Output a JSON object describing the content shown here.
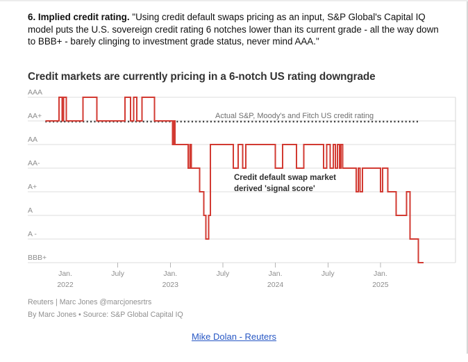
{
  "page": {
    "intro_bold": "6. Implied credit rating.",
    "intro_text": " \"Using credit default swaps pricing as an input, S&P Global's Capital IQ model puts the U.S. sovereign credit rating 6 notches lower than its current grade - all the way down to BBB+ - barely clinging to investment grade status, never mind AAA.\"",
    "link_label": "Mike Dolan - Reuters"
  },
  "chart_data": {
    "type": "line",
    "subtype": "step",
    "title": "Credit markets are currently pricing in a 6-notch US rating downgrade",
    "grid": "horizontal-on",
    "legend_position": "inline-annotations",
    "y_axis": {
      "labels_top_to_bottom": [
        "AAA",
        "AA+",
        "AA",
        "AA-",
        "A+",
        "A",
        "A -",
        "BBB+"
      ],
      "levels": [
        "AAA",
        "AA+",
        "AA",
        "AA-",
        "A+",
        "A",
        "A-",
        "BBB+"
      ]
    },
    "x_axis": {
      "range": [
        2021.81,
        2025.68
      ],
      "ticks": [
        {
          "t": 2022.0,
          "label": "Jan.",
          "sublabel": "2022"
        },
        {
          "t": 2022.5,
          "label": "July"
        },
        {
          "t": 2023.0,
          "label": "Jan.",
          "sublabel": "2023"
        },
        {
          "t": 2023.5,
          "label": "July"
        },
        {
          "t": 2024.0,
          "label": "Jan.",
          "sublabel": "2024"
        },
        {
          "t": 2024.5,
          "label": "July"
        },
        {
          "t": 2025.0,
          "label": "Jan.",
          "sublabel": "2025"
        }
      ]
    },
    "series": [
      {
        "name": "Actual S&P, Moody's and Fitch US credit rating",
        "style": "dotted",
        "color": "#3b3b3b",
        "points": [
          [
            2021.81,
            "AA+"
          ],
          [
            2025.36,
            "AA+"
          ]
        ]
      },
      {
        "name": "Credit default swap market derived 'signal score'",
        "style": "step",
        "color": "#d23a32",
        "points": [
          [
            2021.81,
            "AA+"
          ],
          [
            2021.94,
            "AAA"
          ],
          [
            2021.97,
            "AA+"
          ],
          [
            2021.985,
            "AAA"
          ],
          [
            2022.01,
            "AA+"
          ],
          [
            2022.17,
            "AAA"
          ],
          [
            2022.3,
            "AA+"
          ],
          [
            2022.57,
            "AAA"
          ],
          [
            2022.62,
            "AA+"
          ],
          [
            2022.65,
            "AAA"
          ],
          [
            2022.68,
            "AA+"
          ],
          [
            2022.73,
            "AAA"
          ],
          [
            2022.85,
            "AA+"
          ],
          [
            2023.02,
            "AA"
          ],
          [
            2023.03,
            "AA+"
          ],
          [
            2023.045,
            "AA"
          ],
          [
            2023.17,
            "AA-"
          ],
          [
            2023.185,
            "AA"
          ],
          [
            2023.2,
            "AA-"
          ],
          [
            2023.28,
            "A+"
          ],
          [
            2023.32,
            "A"
          ],
          [
            2023.34,
            "A-"
          ],
          [
            2023.365,
            "A"
          ],
          [
            2023.38,
            "AA"
          ],
          [
            2023.6,
            "AA-"
          ],
          [
            2023.645,
            "AA"
          ],
          [
            2023.69,
            "AA-"
          ],
          [
            2023.72,
            "AA"
          ],
          [
            2024.0,
            "AA-"
          ],
          [
            2024.07,
            "AA"
          ],
          [
            2024.2,
            "AA-"
          ],
          [
            2024.27,
            "AA"
          ],
          [
            2024.46,
            "AA-"
          ],
          [
            2024.49,
            "AA"
          ],
          [
            2024.52,
            "AA-"
          ],
          [
            2024.55,
            "AA"
          ],
          [
            2024.57,
            "AA-"
          ],
          [
            2024.59,
            "AA"
          ],
          [
            2024.61,
            "AA-"
          ],
          [
            2024.625,
            "AA"
          ],
          [
            2024.64,
            "AA-"
          ],
          [
            2024.77,
            "A+"
          ],
          [
            2024.79,
            "AA-"
          ],
          [
            2024.805,
            "A+"
          ],
          [
            2024.83,
            "AA-"
          ],
          [
            2025.0,
            "A+"
          ],
          [
            2025.02,
            "AA-"
          ],
          [
            2025.07,
            "A+"
          ],
          [
            2025.15,
            "A"
          ],
          [
            2025.25,
            "A+"
          ],
          [
            2025.28,
            "A-"
          ],
          [
            2025.36,
            "BBB+"
          ],
          [
            2025.41,
            "BBB+"
          ]
        ]
      }
    ],
    "annotations": [
      {
        "text": "Actual S&P, Moody's and Fitch US credit rating",
        "color": "#6e6e6e"
      },
      {
        "lines": [
          "Credit default swap market",
          "derived 'signal score'"
        ],
        "color": "#2f2f2f"
      }
    ],
    "colors": {
      "signal_line": "#d23a32",
      "actual_line": "#3b3b3b",
      "gridline": "#dcdcdc",
      "axis_text": "#8c8c8c"
    },
    "footnotes": [
      "Reuters | Marc Jones @marcjonesrtrs",
      "By Marc Jones • Source: S&P Global Capital IQ"
    ]
  }
}
